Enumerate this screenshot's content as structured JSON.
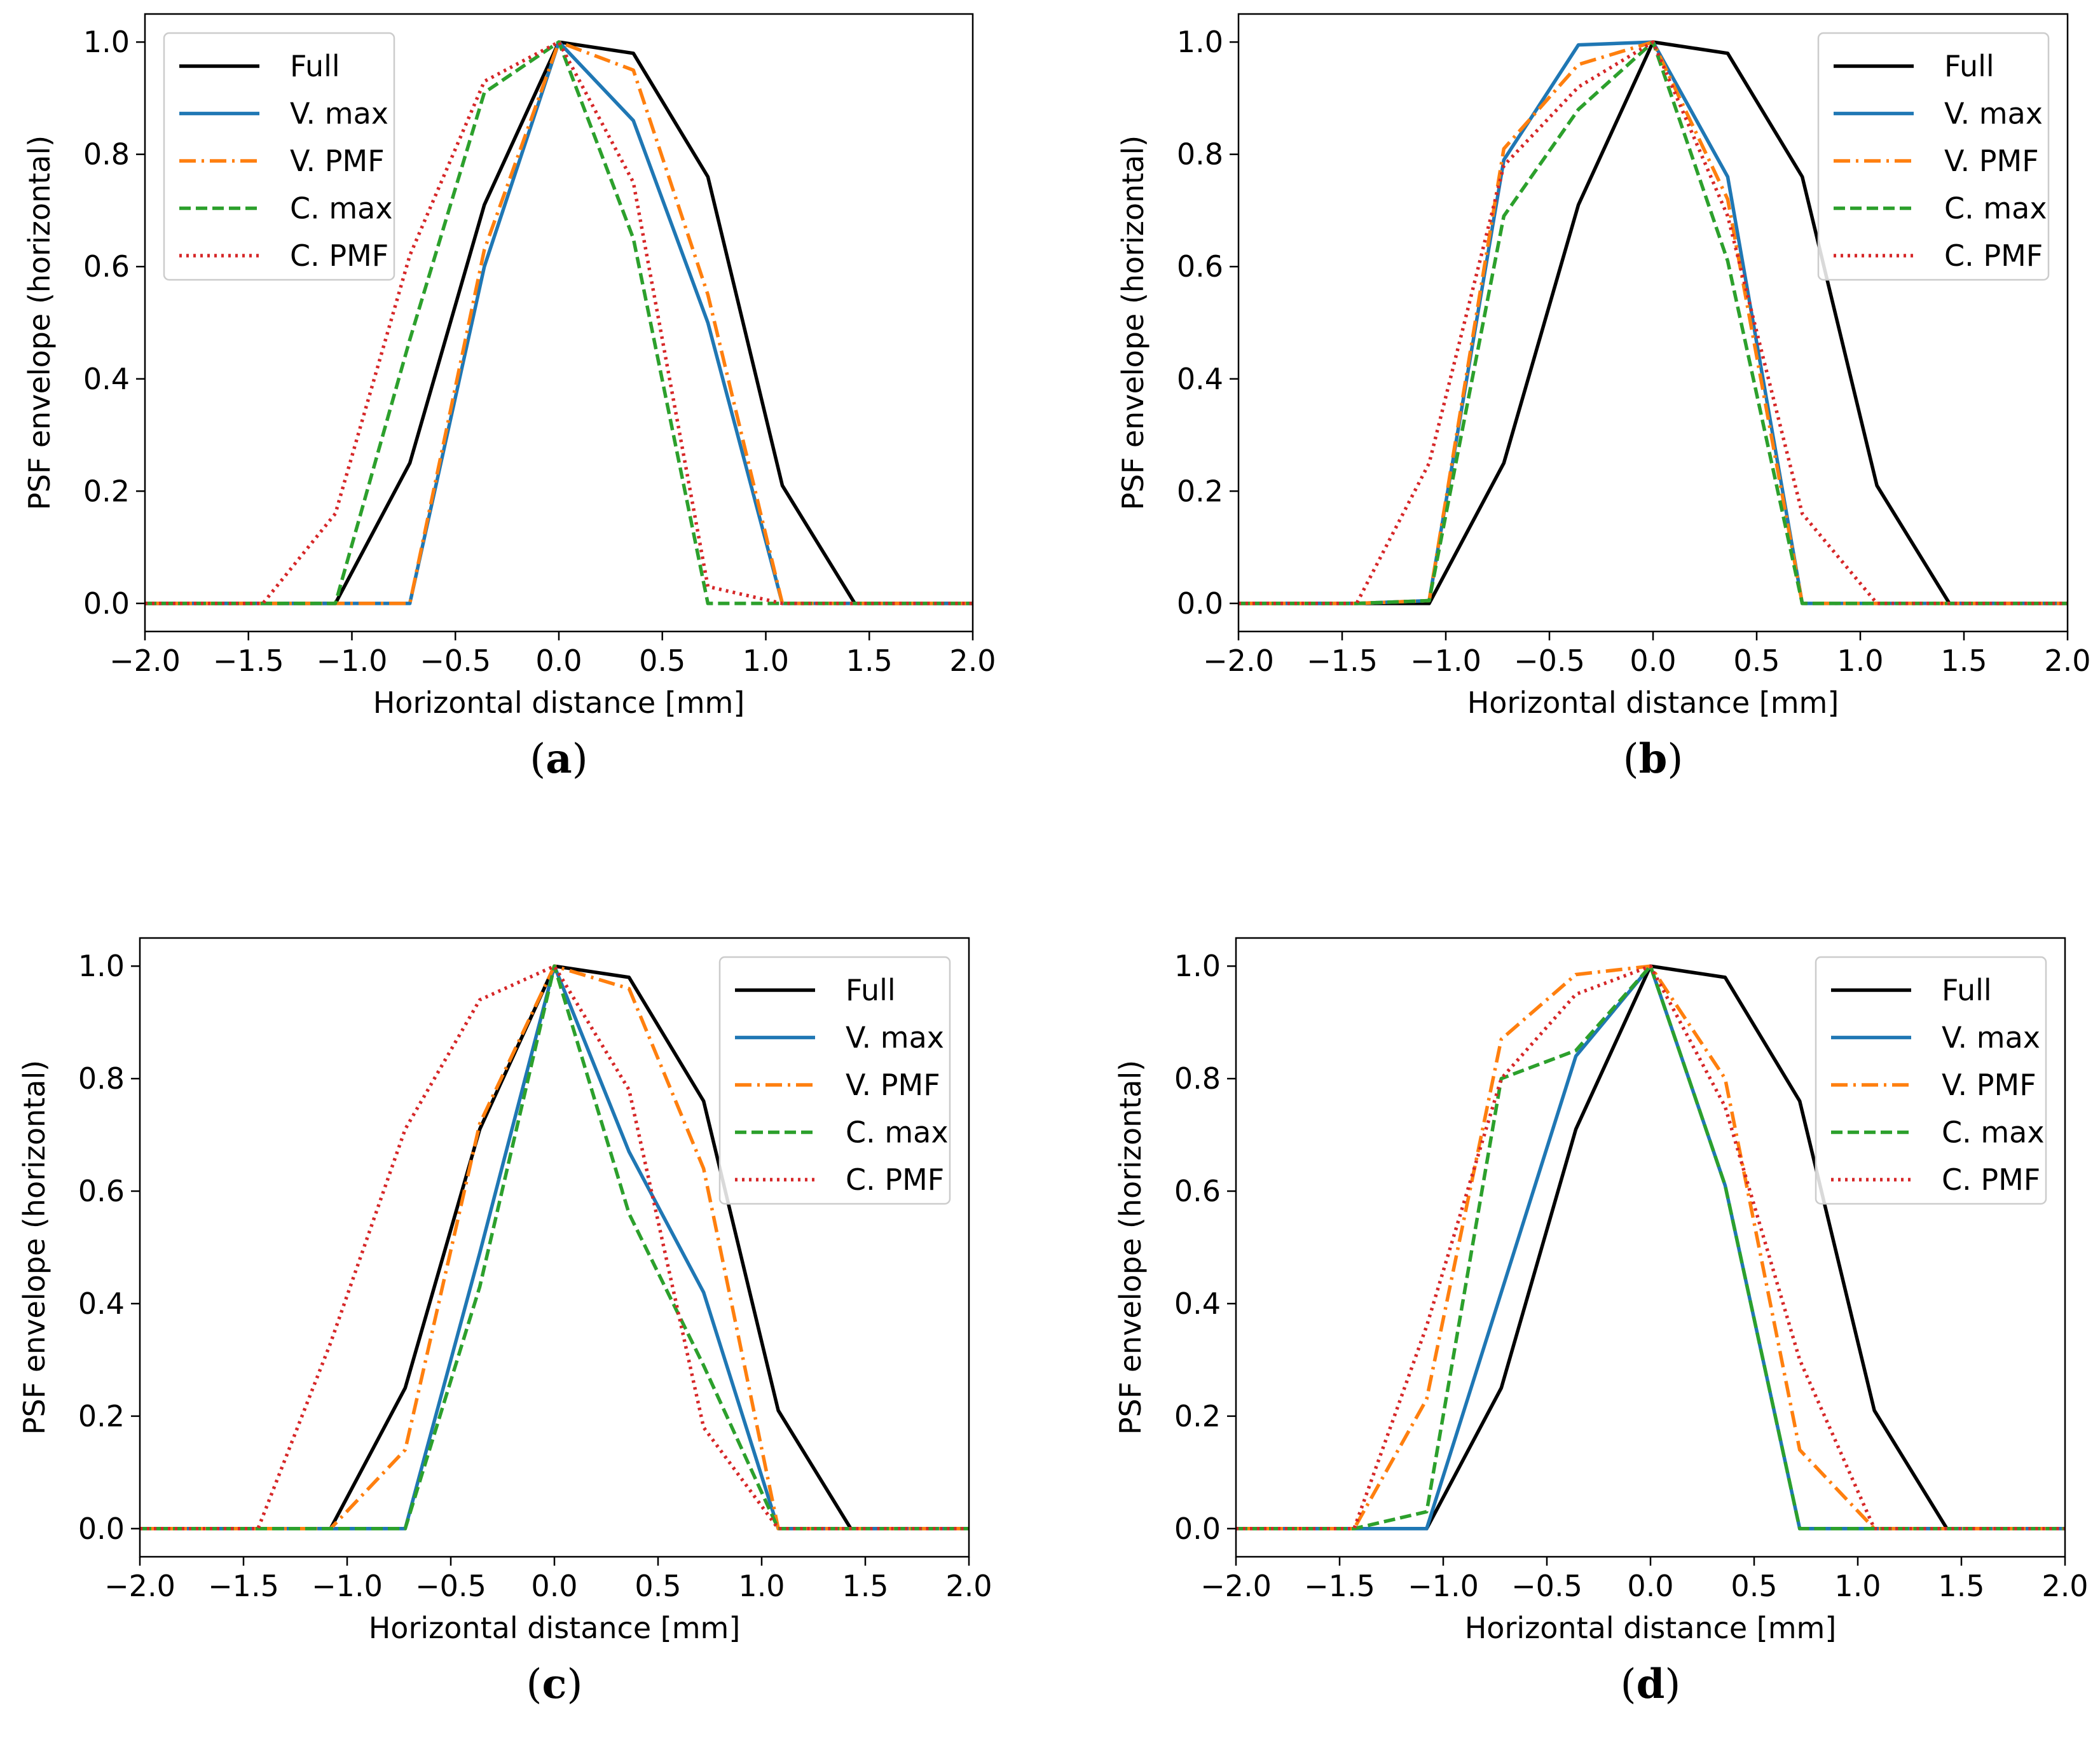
{
  "series_styles": [
    {
      "key": "full",
      "color": "#000000",
      "dash": ""
    },
    {
      "key": "vmax",
      "color": "#1f77b4",
      "dash": ""
    },
    {
      "key": "vpmf",
      "color": "#ff7f0e",
      "dash": "26,9,4,9"
    },
    {
      "key": "cmax",
      "color": "#2ca02c",
      "dash": "18,8"
    },
    {
      "key": "cpmf",
      "color": "#d62728",
      "dash": "4,7"
    }
  ],
  "chart_data": [
    {
      "type": "line",
      "caption": "a",
      "xlabel": "Horizontal distance [mm]",
      "ylabel": "PSF envelope (horizontal)",
      "xlim": [
        -2.0,
        2.0
      ],
      "ylim": [
        -0.05,
        1.05
      ],
      "xticks": [
        "−2.0",
        "−1.5",
        "−1.0",
        "−0.5",
        "0.0",
        "0.5",
        "1.0",
        "1.5",
        "2.0"
      ],
      "yticks": [
        "0.0",
        "0.2",
        "0.4",
        "0.6",
        "0.8",
        "1.0"
      ],
      "legend_position": "top-left",
      "x": [
        -2.0,
        -1.43,
        -1.08,
        -0.72,
        -0.36,
        0.0,
        0.36,
        0.72,
        1.08,
        1.43,
        2.0
      ],
      "series": [
        {
          "name": "Full",
          "values": [
            0,
            0,
            0,
            0.25,
            0.71,
            1.0,
            0.98,
            0.76,
            0.21,
            0,
            0
          ]
        },
        {
          "name": "V. max",
          "values": [
            0,
            0,
            0,
            0,
            0.6,
            1.0,
            0.86,
            0.5,
            0,
            0,
            0
          ]
        },
        {
          "name": "V. PMF",
          "values": [
            0,
            0,
            0,
            0,
            0.63,
            1.0,
            0.95,
            0.55,
            0,
            0,
            0
          ]
        },
        {
          "name": "C. max",
          "values": [
            0,
            0,
            0,
            0.47,
            0.91,
            1.0,
            0.65,
            0,
            0,
            0,
            0
          ]
        },
        {
          "name": "C. PMF",
          "values": [
            0,
            0,
            0.16,
            0.62,
            0.93,
            1.0,
            0.75,
            0.03,
            0,
            0,
            0
          ]
        }
      ]
    },
    {
      "type": "line",
      "caption": "b",
      "xlabel": "Horizontal distance [mm]",
      "ylabel": "PSF envelope (horizontal)",
      "xlim": [
        -2.0,
        2.0
      ],
      "ylim": [
        -0.05,
        1.05
      ],
      "xticks": [
        "−2.0",
        "−1.5",
        "−1.0",
        "−0.5",
        "0.0",
        "0.5",
        "1.0",
        "1.5",
        "2.0"
      ],
      "yticks": [
        "0.0",
        "0.2",
        "0.4",
        "0.6",
        "0.8",
        "1.0"
      ],
      "legend_position": "top-right",
      "x": [
        -2.0,
        -1.43,
        -1.08,
        -0.72,
        -0.36,
        0.0,
        0.36,
        0.72,
        1.08,
        1.43,
        2.0
      ],
      "series": [
        {
          "name": "Full",
          "values": [
            0,
            0,
            0,
            0.25,
            0.71,
            1.0,
            0.98,
            0.76,
            0.21,
            0,
            0
          ]
        },
        {
          "name": "V. max",
          "values": [
            0,
            0,
            0.005,
            0.79,
            0.995,
            1.0,
            0.76,
            0,
            0,
            0,
            0
          ]
        },
        {
          "name": "V. PMF",
          "values": [
            0,
            0,
            0.005,
            0.81,
            0.96,
            1.0,
            0.72,
            0,
            0,
            0,
            0
          ]
        },
        {
          "name": "C. max",
          "values": [
            0,
            0,
            0.005,
            0.69,
            0.88,
            1.0,
            0.61,
            0,
            0,
            0,
            0
          ]
        },
        {
          "name": "C. PMF",
          "values": [
            0,
            0,
            0.25,
            0.78,
            0.92,
            1.0,
            0.69,
            0.16,
            0,
            0,
            0
          ]
        }
      ]
    },
    {
      "type": "line",
      "caption": "c",
      "xlabel": "Horizontal distance [mm]",
      "ylabel": "PSF envelope (horizontal)",
      "xlim": [
        -2.0,
        2.0
      ],
      "ylim": [
        -0.05,
        1.05
      ],
      "xticks": [
        "−2.0",
        "−1.5",
        "−1.0",
        "−0.5",
        "0.0",
        "0.5",
        "1.0",
        "1.5",
        "2.0"
      ],
      "yticks": [
        "0.0",
        "0.2",
        "0.4",
        "0.6",
        "0.8",
        "1.0"
      ],
      "legend_position": "top-right",
      "x": [
        -2.0,
        -1.43,
        -1.08,
        -0.72,
        -0.36,
        0.0,
        0.36,
        0.72,
        1.08,
        1.43,
        2.0
      ],
      "series": [
        {
          "name": "Full",
          "values": [
            0,
            0,
            0,
            0.25,
            0.71,
            1.0,
            0.98,
            0.76,
            0.21,
            0,
            0
          ]
        },
        {
          "name": "V. max",
          "values": [
            0,
            0,
            0,
            0,
            0.49,
            1.0,
            0.67,
            0.42,
            0,
            0,
            0
          ]
        },
        {
          "name": "V. PMF",
          "values": [
            0,
            0,
            0,
            0.14,
            0.72,
            1.0,
            0.96,
            0.64,
            0,
            0,
            0
          ]
        },
        {
          "name": "C. max",
          "values": [
            0,
            0,
            0,
            0,
            0.43,
            1.0,
            0.56,
            0.29,
            0,
            0,
            0
          ]
        },
        {
          "name": "C. PMF",
          "values": [
            0,
            0,
            0.33,
            0.71,
            0.94,
            1.0,
            0.78,
            0.18,
            0,
            0,
            0
          ]
        }
      ]
    },
    {
      "type": "line",
      "caption": "d",
      "xlabel": "Horizontal distance [mm]",
      "ylabel": "PSF envelope (horizontal)",
      "xlim": [
        -2.0,
        2.0
      ],
      "ylim": [
        -0.05,
        1.05
      ],
      "xticks": [
        "−2.0",
        "−1.5",
        "−1.0",
        "−0.5",
        "0.0",
        "0.5",
        "1.0",
        "1.5",
        "2.0"
      ],
      "yticks": [
        "0.0",
        "0.2",
        "0.4",
        "0.6",
        "0.8",
        "1.0"
      ],
      "legend_position": "top-right",
      "x": [
        -2.0,
        -1.43,
        -1.08,
        -0.72,
        -0.36,
        0.0,
        0.36,
        0.72,
        1.08,
        1.43,
        2.0
      ],
      "series": [
        {
          "name": "Full",
          "values": [
            0,
            0,
            0,
            0.25,
            0.71,
            1.0,
            0.98,
            0.76,
            0.21,
            0,
            0
          ]
        },
        {
          "name": "V. max",
          "values": [
            0,
            0,
            0,
            0.42,
            0.84,
            1.0,
            0.61,
            0,
            0,
            0,
            0
          ]
        },
        {
          "name": "V. PMF",
          "values": [
            0,
            0,
            0.23,
            0.87,
            0.985,
            1.0,
            0.8,
            0.14,
            0,
            0,
            0
          ]
        },
        {
          "name": "C. max",
          "values": [
            0,
            0,
            0.03,
            0.8,
            0.85,
            1.0,
            0.61,
            0,
            0,
            0,
            0
          ]
        },
        {
          "name": "C. PMF",
          "values": [
            0,
            0,
            0.36,
            0.8,
            0.95,
            1.0,
            0.75,
            0.3,
            0,
            0,
            0
          ]
        }
      ]
    }
  ]
}
